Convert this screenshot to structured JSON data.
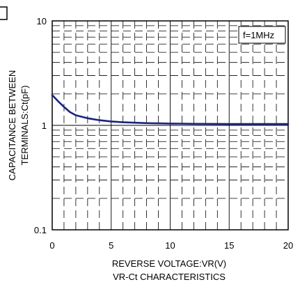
{
  "chart_data": {
    "type": "line",
    "xlabel": "REVERSE VOLTAGE:VR(V)",
    "caption": "VR-Ct CHARACTERISTICS",
    "ylabel_lines": [
      "CAPACITANCE BETWEEN",
      "TERMINALS:Ct(pF)"
    ],
    "legend_text": "f=1MHz",
    "legend_position": "top-right",
    "x_ticks": [
      0,
      5,
      10,
      15,
      20
    ],
    "x_tick_labels": [
      "0",
      "5",
      "10",
      "15",
      "20"
    ],
    "y_ticks": [
      0.1,
      1,
      10
    ],
    "y_tick_labels": [
      "0.1",
      "1",
      "10"
    ],
    "xlim": [
      0,
      20
    ],
    "ylim": [
      0.1,
      10
    ],
    "y_scale": "log",
    "grid": true,
    "series": [
      {
        "color": "#1a237e",
        "x": [
          0,
          0.5,
          1,
          1.5,
          2,
          3,
          4,
          5,
          6,
          7,
          8,
          10,
          12,
          15,
          18,
          20
        ],
        "y": [
          1.95,
          1.7,
          1.5,
          1.34,
          1.25,
          1.17,
          1.12,
          1.09,
          1.07,
          1.06,
          1.05,
          1.04,
          1.035,
          1.03,
          1.03,
          1.03
        ]
      }
    ]
  }
}
